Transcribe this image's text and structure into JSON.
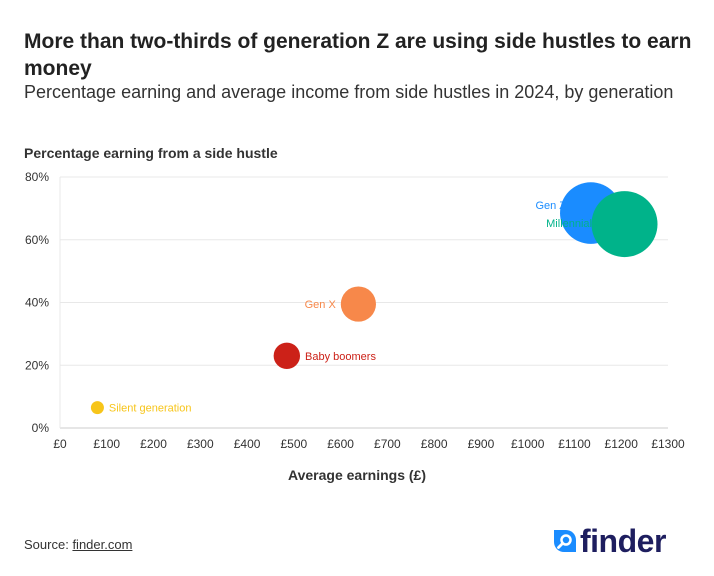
{
  "title": "More than two-thirds of generation Z are using side hustles to earn money",
  "subtitle": "Percentage earning and average income from side hustles in 2024, by generation",
  "source": {
    "label": "Source:",
    "link_text": "finder.com"
  },
  "logo": {
    "text": "finder",
    "icon": "search-icon",
    "color": "#1e1e5f",
    "accent": "#1a8cff"
  },
  "chart_data": {
    "type": "scatter",
    "ylabel": "Percentage earning from a side hustle",
    "xlabel": "Average earnings (£)",
    "xlim": [
      0,
      1300
    ],
    "ylim": [
      0,
      80
    ],
    "x_ticks": [
      "£0",
      "£100",
      "£200",
      "£300",
      "£400",
      "£500",
      "£600",
      "£700",
      "£800",
      "£900",
      "£1000",
      "£1100",
      "£1200",
      "£1300"
    ],
    "y_ticks": [
      "0%",
      "20%",
      "40%",
      "60%",
      "80%"
    ],
    "grid": true,
    "points": [
      {
        "name": "Silent generation",
        "x": 80,
        "y": 6.5,
        "size": 1,
        "color": "#f7c51a",
        "label_side": "right"
      },
      {
        "name": "Baby boomers",
        "x": 485,
        "y": 23,
        "size": 3,
        "color": "#cc2118",
        "label_side": "right"
      },
      {
        "name": "Gen X",
        "x": 638,
        "y": 39.5,
        "size": 4,
        "color": "#f7884a",
        "label_side": "left"
      },
      {
        "name": "Gen Z",
        "x": 1135,
        "y": 68.5,
        "size": 7,
        "color": "#1a8cff",
        "label_side": "left"
      },
      {
        "name": "Millennials",
        "x": 1207,
        "y": 65,
        "size": 7.5,
        "color": "#00b38a",
        "label_side": "left"
      }
    ]
  }
}
